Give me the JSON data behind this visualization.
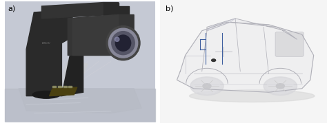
{
  "fig_width": 4.74,
  "fig_height": 1.79,
  "dpi": 100,
  "background_color": "#ffffff",
  "label_a": "a)",
  "label_b": "b)",
  "label_fontsize": 8,
  "label_color": "#000000",
  "panel_a_bg_top": "#c8cdd8",
  "panel_a_bg_bottom": "#b8bcc8",
  "panel_b_bg": "#f0f0f0",
  "sensor_dark": "#2a2a2a",
  "sensor_mid": "#3d3d3d",
  "sensor_light": "#555555",
  "sensor_chrome": "#888899",
  "sensor_chrome2": "#aaaaaa",
  "chip_color": "#5a5020",
  "beam_color": "#d0d0d8",
  "car_body": "#e8e8ea",
  "car_outline": "#b0b0b8",
  "car_dark": "#c0c0c8",
  "annotation_color": "#4060a0",
  "wheel_color": "#d0d0d8",
  "wheel_rim": "#e8e8ea",
  "shadow_color": "#c0c0c8"
}
